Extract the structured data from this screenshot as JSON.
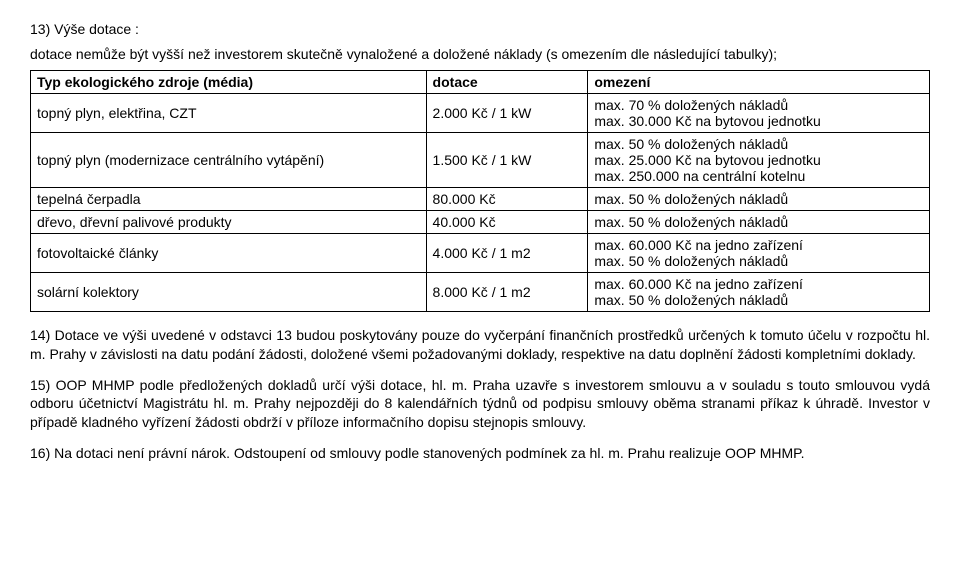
{
  "section13": {
    "heading": "13) Výše dotace :",
    "intro": "dotace nemůže být vyšší než investorem skutečně vynaložené a doložené náklady (s omezením dle následující tabulky);"
  },
  "table": {
    "headers": {
      "source": "Typ ekologického zdroje (média)",
      "amount": "dotace",
      "limit": "omezení"
    },
    "rows": [
      {
        "source": "topný plyn, elektřina, CZT",
        "amount": "2.000 Kč / 1 kW",
        "limit": "max. 70 % doložených nákladů\nmax. 30.000 Kč na bytovou jednotku"
      },
      {
        "source": "topný plyn (modernizace centrálního vytápění)",
        "amount": "1.500 Kč / 1 kW",
        "limit": "max. 50 % doložených nákladů\nmax. 25.000 Kč na bytovou jednotku\nmax. 250.000 na centrální kotelnu"
      },
      {
        "source": "tepelná čerpadla",
        "amount": "80.000 Kč",
        "limit": "max. 50 % doložených nákladů"
      },
      {
        "source": "dřevo, dřevní palivové produkty",
        "amount": "40.000 Kč",
        "limit": "max. 50 % doložených nákladů"
      },
      {
        "source": "fotovoltaické články",
        "amount": "4.000 Kč / 1 m2",
        "limit": "max. 60.000 Kč na jedno zařízení\nmax. 50 % doložených nákladů"
      },
      {
        "source": "solární kolektory",
        "amount": "8.000 Kč / 1 m2",
        "limit": "max. 60.000 Kč na jedno zařízení\nmax. 50 % doložených nákladů"
      }
    ]
  },
  "section14": "14) Dotace ve výši uvedené v odstavci 13 budou poskytovány pouze do vyčerpání finančních prostředků určených k tomuto účelu v rozpočtu hl. m. Prahy v závislosti na datu podání žádosti, doložené všemi požadovanými doklady, respektive na datu doplnění žádosti kompletními doklady.",
  "section15": "15) OOP MHMP podle předložených dokladů určí výši dotace, hl. m. Praha uzavře s investorem smlouvu a v souladu s touto smlouvou vydá odboru účetnictví Magistrátu hl. m. Prahy nejpozději do 8 kalendářních týdnů od podpisu smlouvy oběma stranami příkaz k úhradě. Investor v případě kladného vyřízení žádosti obdrží v příloze informačního dopisu stejnopis smlouvy.",
  "section16": "16) Na dotaci není právní nárok. Odstoupení od smlouvy podle stanovených podmínek za hl. m. Prahu realizuje OOP MHMP."
}
